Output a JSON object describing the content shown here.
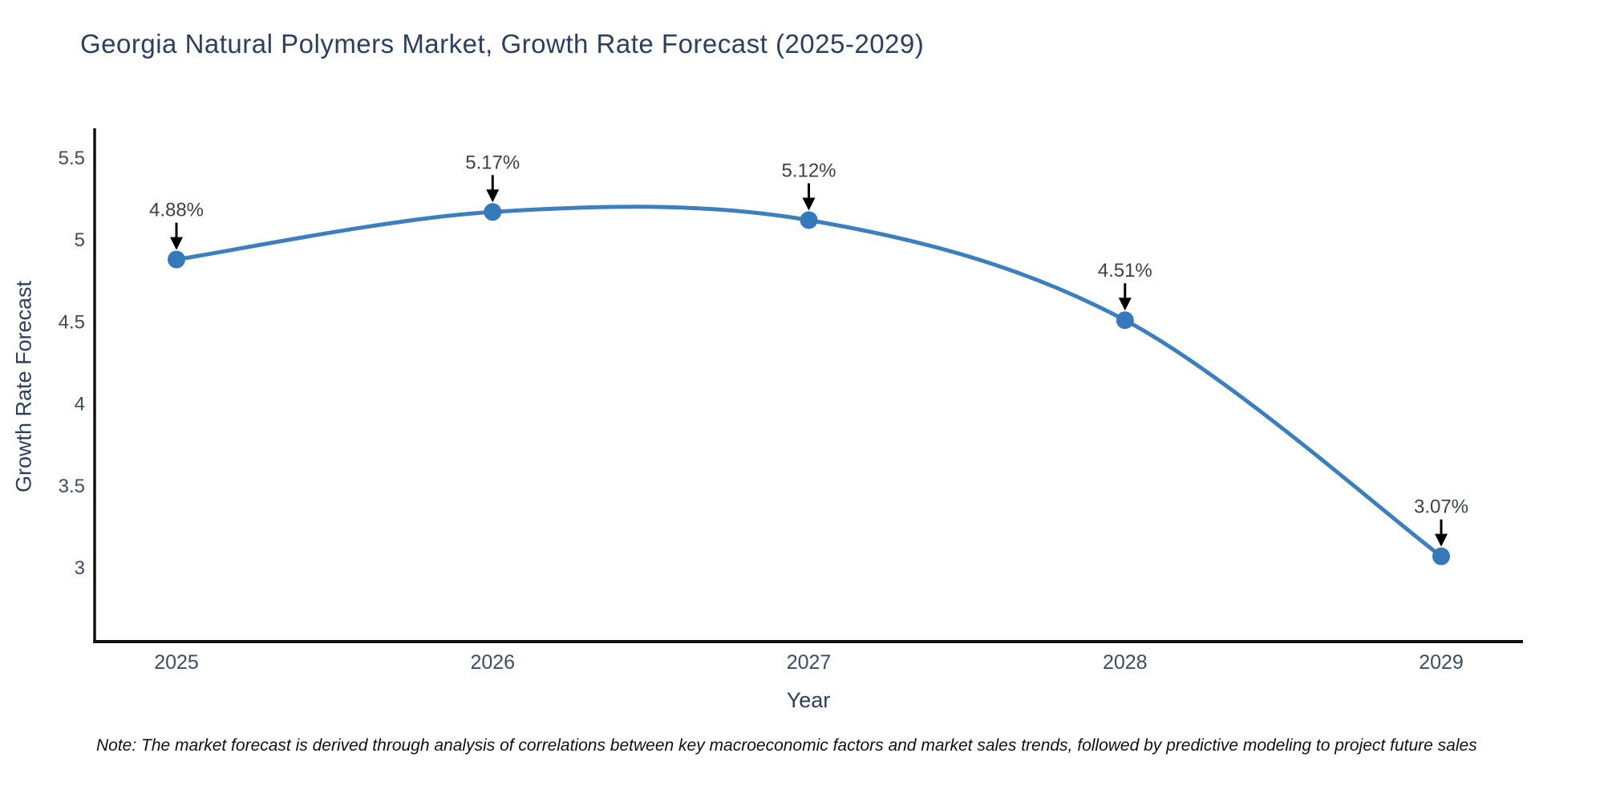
{
  "title": "Georgia Natural Polymers Market, Growth Rate Forecast (2025-2029)",
  "note": "Note: The market forecast is derived through analysis of correlations between key macroeconomic factors and market sales trends, followed by predictive modeling to project future sales",
  "chart_data": {
    "type": "line",
    "title": "Georgia Natural Polymers Market, Growth Rate Forecast (2025-2029)",
    "xlabel": "Year",
    "ylabel": "Growth Rate Forecast",
    "categories": [
      "2025",
      "2026",
      "2027",
      "2028",
      "2029"
    ],
    "values": [
      4.88,
      5.17,
      5.12,
      4.51,
      3.07
    ],
    "point_labels": [
      "4.88%",
      "5.17%",
      "5.12%",
      "4.51%",
      "3.07%"
    ],
    "yticks": [
      5.5,
      5,
      4.5,
      4,
      3.5,
      3
    ],
    "ylim": [
      2.55,
      5.68
    ],
    "grid": false,
    "legend_position": "none",
    "smooth": true,
    "line_color": "#3d7ebf",
    "marker_color": "#3579bd",
    "axis_color": "#111111",
    "tick_color": "#3d4c63",
    "annotation_color": "#3c4149",
    "arrow_color": "#000000"
  }
}
